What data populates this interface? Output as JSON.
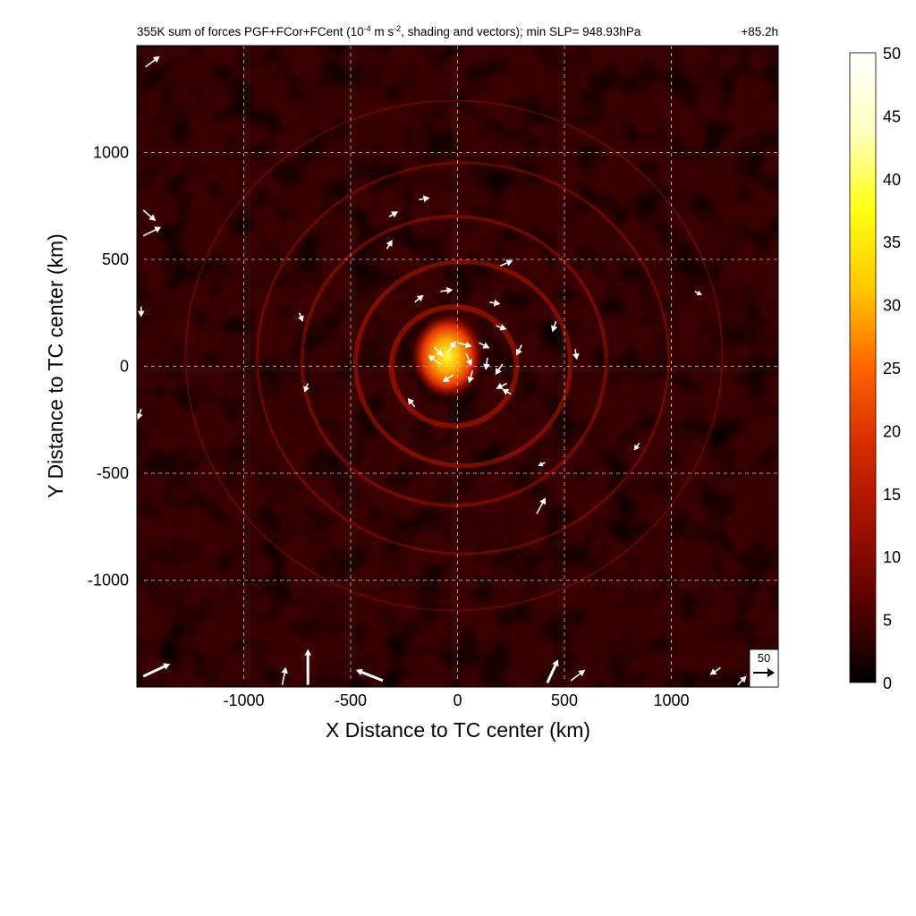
{
  "chart_data": {
    "type": "heatmap",
    "title": "355K sum of forces PGF+FCor+FCent (10",
    "title_sup1": "-4",
    "title_mid": " m s",
    "title_sup2": "-2",
    "title_end": ", shading and vectors); min SLP= 948.93hPa",
    "forecast_hour": "+85.2h",
    "xlabel": "X Distance to TC center (km)",
    "ylabel": "Y Distance to TC center (km)",
    "xlim": [
      -1500,
      1500
    ],
    "ylim": [
      -1500,
      1500
    ],
    "xticks": [
      -1000,
      -500,
      0,
      500,
      1000
    ],
    "yticks": [
      -1000,
      -500,
      0,
      500,
      1000
    ],
    "xtick_labels": [
      "-1000",
      "-500",
      "0",
      "500",
      "1000"
    ],
    "ytick_labels": [
      "-1000",
      "-500",
      "0",
      "500",
      "1000"
    ],
    "grid": true,
    "colorbar": {
      "min": 0,
      "max": 50,
      "ticks": [
        0,
        5,
        10,
        15,
        20,
        25,
        30,
        35,
        40,
        45,
        50
      ],
      "tick_labels": [
        "0",
        "5",
        "10",
        "15",
        "20",
        "25",
        "30",
        "35",
        "40",
        "45",
        "50"
      ],
      "colormap": "hot",
      "colors": [
        "#000000",
        "#5a0000",
        "#a01000",
        "#d42a00",
        "#ff6400",
        "#ffc800",
        "#ffff10",
        "#ffffc0",
        "#ffffff"
      ]
    },
    "reference_vector": {
      "value": "50",
      "label": "50"
    },
    "vectors": [
      {
        "x": -80,
        "y": 10,
        "u": -14,
        "v": 10
      },
      {
        "x": -50,
        "y": 60,
        "u": 10,
        "v": 14
      },
      {
        "x": 0,
        "y": 110,
        "u": 16,
        "v": -4
      },
      {
        "x": 40,
        "y": 60,
        "u": 6,
        "v": -14
      },
      {
        "x": -20,
        "y": -40,
        "u": -12,
        "v": -8
      },
      {
        "x": 70,
        "y": -20,
        "u": -4,
        "v": -14
      },
      {
        "x": -110,
        "y": 90,
        "u": 10,
        "v": -10
      },
      {
        "x": 100,
        "y": 110,
        "u": 12,
        "v": -6
      },
      {
        "x": 140,
        "y": 40,
        "u": -2,
        "v": -14
      },
      {
        "x": 210,
        "y": 10,
        "u": -8,
        "v": -12
      },
      {
        "x": 230,
        "y": -80,
        "u": -12,
        "v": -6
      },
      {
        "x": 250,
        "y": -130,
        "u": -10,
        "v": 6
      },
      {
        "x": 180,
        "y": 190,
        "u": 12,
        "v": -4
      },
      {
        "x": 300,
        "y": 100,
        "u": -6,
        "v": -12
      },
      {
        "x": 460,
        "y": 210,
        "u": -4,
        "v": -12
      },
      {
        "x": 550,
        "y": 80,
        "u": 2,
        "v": -12
      },
      {
        "x": -200,
        "y": 300,
        "u": 10,
        "v": 8
      },
      {
        "x": -80,
        "y": 350,
        "u": 14,
        "v": 2
      },
      {
        "x": 150,
        "y": 300,
        "u": 12,
        "v": -2
      },
      {
        "x": 200,
        "y": 470,
        "u": 14,
        "v": 6
      },
      {
        "x": -320,
        "y": 700,
        "u": 10,
        "v": 6
      },
      {
        "x": -180,
        "y": 780,
        "u": 12,
        "v": 2
      },
      {
        "x": -330,
        "y": 550,
        "u": 6,
        "v": 10
      },
      {
        "x": -740,
        "y": 250,
        "u": 4,
        "v": -10
      },
      {
        "x": -700,
        "y": -80,
        "u": -4,
        "v": -10
      },
      {
        "x": -200,
        "y": -190,
        "u": -8,
        "v": 10
      },
      {
        "x": 370,
        "y": -690,
        "u": 10,
        "v": 18
      },
      {
        "x": 410,
        "y": -450,
        "u": -8,
        "v": -4
      },
      {
        "x": 850,
        "y": -360,
        "u": -6,
        "v": -8
      },
      {
        "x": 1110,
        "y": 350,
        "u": 8,
        "v": -4
      },
      {
        "x": -1460,
        "y": 1400,
        "u": 16,
        "v": 12
      },
      {
        "x": -1470,
        "y": 730,
        "u": 14,
        "v": -12
      },
      {
        "x": -1470,
        "y": 610,
        "u": 20,
        "v": 10
      },
      {
        "x": -1480,
        "y": 280,
        "u": 0,
        "v": -12
      },
      {
        "x": -1480,
        "y": -200,
        "u": -4,
        "v": -12
      },
      {
        "x": -1470,
        "y": -1450,
        "u": 30,
        "v": 14
      },
      {
        "x": -700,
        "y": -1490,
        "u": 0,
        "v": 40
      },
      {
        "x": -820,
        "y": -1490,
        "u": 4,
        "v": 20
      },
      {
        "x": -350,
        "y": -1470,
        "u": -30,
        "v": 12
      },
      {
        "x": 420,
        "y": -1480,
        "u": 12,
        "v": 26
      },
      {
        "x": 530,
        "y": -1470,
        "u": 16,
        "v": 12
      },
      {
        "x": 1230,
        "y": -1410,
        "u": -12,
        "v": -8
      },
      {
        "x": 1310,
        "y": -1490,
        "u": 10,
        "v": 10
      }
    ]
  }
}
